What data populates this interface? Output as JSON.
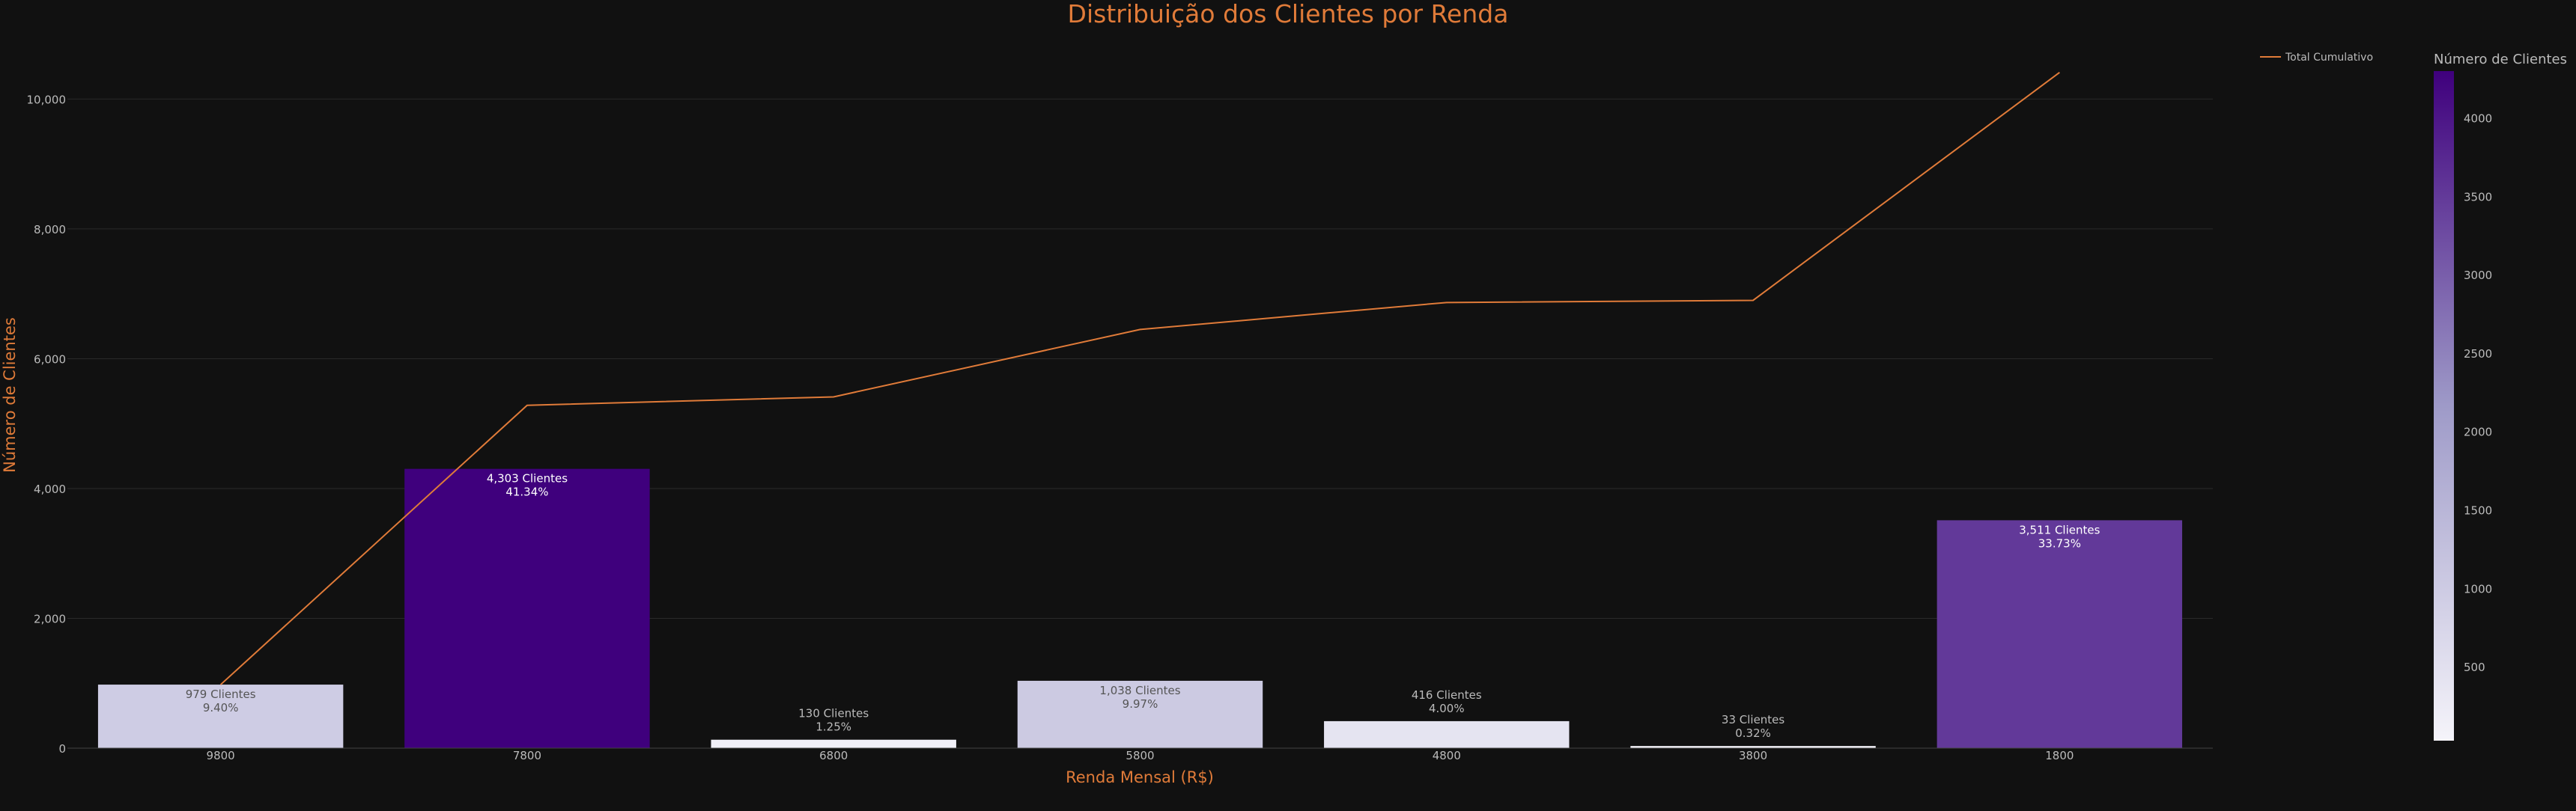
{
  "chart_data": {
    "type": "bar",
    "title": "Distribuição dos Clientes por Renda",
    "xlabel": "Renda Mensal (R$)",
    "ylabel": "Número de Clientes",
    "categories": [
      "9800",
      "7800",
      "6800",
      "5800",
      "4800",
      "3800",
      "1800"
    ],
    "values": [
      979,
      4303,
      130,
      1038,
      416,
      33,
      3511
    ],
    "bar_labels": [
      [
        "979 Clientes",
        "9.40%"
      ],
      [
        "4,303 Clientes",
        "41.34%"
      ],
      [
        "130 Clientes",
        "1.25%"
      ],
      [
        "1,038 Clientes",
        "9.97%"
      ],
      [
        "416 Clientes",
        "4.00%"
      ],
      [
        "33 Clientes",
        "0.32%"
      ],
      [
        "3,511 Clientes",
        "33.73%"
      ]
    ],
    "line_series": {
      "name": "Total Cumulativo",
      "values": [
        979,
        5282,
        5412,
        6450,
        6866,
        6899,
        10410
      ]
    },
    "yticks": [
      {
        "value": 0,
        "label": "0"
      },
      {
        "value": 2000,
        "label": "2,000"
      },
      {
        "value": 4000,
        "label": "4,000"
      },
      {
        "value": 6000,
        "label": "6,000"
      },
      {
        "value": 8000,
        "label": "8,000"
      },
      {
        "value": 10000,
        "label": "10,000"
      }
    ],
    "ylim": [
      0,
      10950
    ],
    "grid": true,
    "legend_position": "top-right",
    "colorbar": {
      "title": "Número de Clientes",
      "range": [
        33,
        4303
      ],
      "ticks": [
        {
          "value": 500,
          "label": "500"
        },
        {
          "value": 1000,
          "label": "1000"
        },
        {
          "value": 1500,
          "label": "1500"
        },
        {
          "value": 2000,
          "label": "2000"
        },
        {
          "value": 2500,
          "label": "2500"
        },
        {
          "value": 3000,
          "label": "3000"
        },
        {
          "value": 3500,
          "label": "3500"
        },
        {
          "value": 4000,
          "label": "4000"
        }
      ]
    },
    "colors": {
      "background": "#111111",
      "accent": "#e07b39",
      "axis_text": "#bbbbbb",
      "grid": "#2a2a2a",
      "line": "#e07b39",
      "scale_low": "#f5f4fa",
      "scale_mid": "#9e9ac8",
      "scale_high": "#3f007d"
    }
  }
}
